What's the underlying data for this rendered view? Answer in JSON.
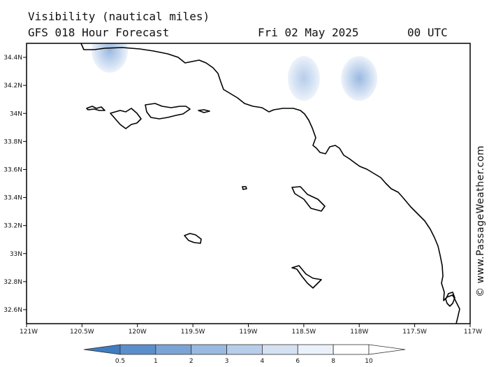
{
  "header": {
    "line1": "Visibility (nautical miles)",
    "line2_model": "GFS 018 Hour Forecast",
    "line2_date": "Fri 02 May 2025",
    "line2_time": "00 UTC"
  },
  "copyright": "© www.PassageWeather.com",
  "map": {
    "lat_range": [
      32.5,
      34.5
    ],
    "lon_range": [
      -121,
      -117
    ],
    "lat_ticks": [
      {
        "value": 32.6,
        "label": "32.6N"
      },
      {
        "value": 32.8,
        "label": "32.8N"
      },
      {
        "value": 33.0,
        "label": "33N"
      },
      {
        "value": 33.2,
        "label": "33.2N"
      },
      {
        "value": 33.4,
        "label": "33.4N"
      },
      {
        "value": 33.6,
        "label": "33.6N"
      },
      {
        "value": 33.8,
        "label": "33.8N"
      },
      {
        "value": 34.0,
        "label": "34N"
      },
      {
        "value": 34.2,
        "label": "34.2N"
      },
      {
        "value": 34.4,
        "label": "34.4N"
      }
    ],
    "lon_ticks": [
      {
        "value": -121.0,
        "label": "121W"
      },
      {
        "value": -120.5,
        "label": "120.5W"
      },
      {
        "value": -120.0,
        "label": "120W"
      },
      {
        "value": -119.5,
        "label": "119.5W"
      },
      {
        "value": -119.0,
        "label": "119W"
      },
      {
        "value": -118.5,
        "label": "118.5W"
      },
      {
        "value": -118.0,
        "label": "118W"
      },
      {
        "value": -117.5,
        "label": "117.5W"
      },
      {
        "value": -117.0,
        "label": "117W"
      }
    ],
    "blobs": [
      {
        "lon": -120.25,
        "lat": 34.45,
        "level": 4
      },
      {
        "lon": -118.5,
        "lat": 34.25,
        "level": 5
      },
      {
        "lon": -118.0,
        "lat": 34.25,
        "level": 4
      }
    ]
  },
  "colorbar": {
    "labels": [
      "0.5",
      "1",
      "2",
      "3",
      "4",
      "6",
      "8",
      "10"
    ],
    "colors": [
      "#3f7cc0",
      "#5b8fcb",
      "#7ba4d6",
      "#9ab9e0",
      "#b7cdea",
      "#d3e1f3",
      "#ebf1fa",
      "#ffffff",
      "#ffffff"
    ]
  }
}
